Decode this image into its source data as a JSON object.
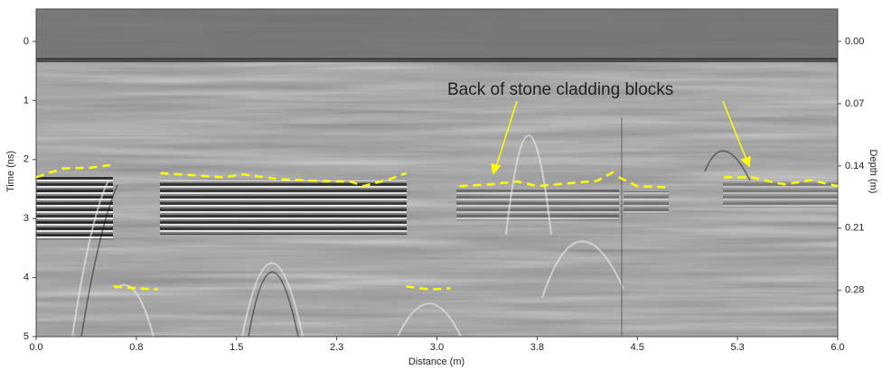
{
  "chart_data": {
    "type": "line",
    "annotation": "Back of stone cladding blocks",
    "xlabel": "Distance (m)",
    "ylabel": "Time (ns)",
    "y2label": "Depth (m)",
    "xlim": [
      0,
      6
    ],
    "ylim": [
      5,
      -0.55
    ],
    "y2lim": [
      0.332,
      -0.0365
    ],
    "xticks": [
      {
        "value": 0,
        "label": "0.0"
      },
      {
        "value": 0.75,
        "label": "0.8"
      },
      1.5,
      {
        "value": 2.25,
        "label": "2.3"
      },
      {
        "value": 3,
        "label": "3.0"
      },
      {
        "value": 3.75,
        "label": "3.8"
      },
      4.5,
      {
        "value": 5.25,
        "label": "5.3"
      },
      {
        "value": 6,
        "label": "6.0"
      }
    ],
    "yticks": [
      0,
      1,
      2,
      3,
      4,
      5
    ],
    "y2ticks": [
      {
        "value": 0,
        "label": "0.00"
      },
      0.07,
      0.14,
      0.21,
      0.28
    ],
    "series": [
      {
        "color": "#ffff00",
        "x": [
          0,
          0.2,
          0.4,
          0.57,
          null,
          0.58,
          0.75,
          0.91,
          null,
          0.93,
          1.2,
          1.4,
          1.55,
          1.8,
          2.1,
          2.35,
          2.45,
          2.65,
          2.77,
          null,
          2.77,
          2.95,
          3.1,
          null,
          3.17,
          3.4,
          3.6,
          3.75,
          4.0,
          4.2,
          4.33,
          null,
          4.36,
          4.5,
          4.73,
          null,
          5.15,
          5.35,
          5.6,
          5.8,
          6.0
        ],
        "values": [
          2.3,
          2.15,
          2.14,
          2.09,
          null,
          4.15,
          4.18,
          4.2,
          null,
          2.23,
          2.27,
          2.3,
          2.25,
          2.33,
          2.36,
          2.37,
          2.45,
          2.33,
          2.23,
          null,
          4.15,
          4.2,
          4.18,
          null,
          2.45,
          2.42,
          2.37,
          2.45,
          2.4,
          2.36,
          2.2,
          null,
          2.3,
          2.45,
          2.47,
          null,
          2.3,
          2.3,
          2.42,
          2.35,
          2.45
        ]
      }
    ]
  }
}
